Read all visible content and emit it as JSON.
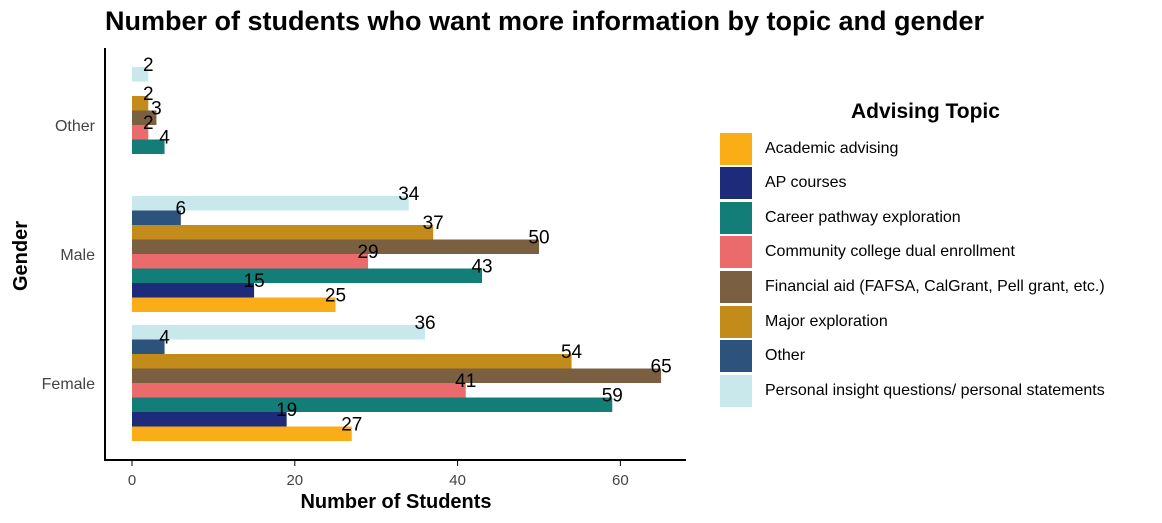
{
  "chart_data": {
    "type": "bar",
    "orientation": "horizontal",
    "title": "Number of students who want more information by topic and gender",
    "xlabel": "Number of Students",
    "ylabel": "Gender",
    "xlim": [
      0,
      68
    ],
    "xticks": [
      0,
      20,
      40,
      60
    ],
    "grid": false,
    "legend_title": "Advising Topic",
    "legend_position": "right",
    "categories": [
      "Female",
      "Male",
      "Other"
    ],
    "series": [
      {
        "name": "Academic advising",
        "color": "#FBAD17",
        "values": [
          27,
          25,
          null
        ]
      },
      {
        "name": "AP courses",
        "color": "#1E2B7A",
        "values": [
          19,
          15,
          null
        ]
      },
      {
        "name": "Career pathway exploration",
        "color": "#137E78",
        "values": [
          59,
          43,
          4
        ]
      },
      {
        "name": "Community college dual enrollment",
        "color": "#EB6A6B",
        "values": [
          41,
          29,
          2
        ]
      },
      {
        "name": "Financial aid (FAFSA, CalGrant, Pell grant, etc.)",
        "color": "#7A6040",
        "values": [
          65,
          50,
          3
        ]
      },
      {
        "name": "Major exploration",
        "color": "#C38B1A",
        "values": [
          54,
          37,
          2
        ]
      },
      {
        "name": "Other",
        "color": "#2D527C",
        "values": [
          4,
          6,
          null
        ]
      },
      {
        "name": "Personal insight questions/ personal statements",
        "color": "#C8E8EB",
        "values": [
          36,
          34,
          2
        ]
      }
    ]
  }
}
